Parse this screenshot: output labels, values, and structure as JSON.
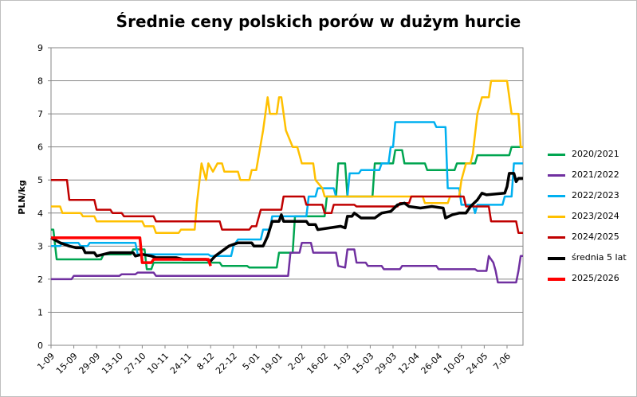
{
  "chart_data": {
    "type": "line",
    "title": "Średnie ceny polskich porów w dużym hurcie",
    "ylabel": "PLN/kg",
    "xlabel": "",
    "ylim": [
      0,
      9
    ],
    "yticks": [
      "0",
      "1",
      "2",
      "3",
      "4",
      "5",
      "6",
      "7",
      "8",
      "9"
    ],
    "grid": "horizontal",
    "legend_position": "right",
    "x_categories": [
      "1-09",
      "15-09",
      "29-09",
      "13-10",
      "27-10",
      "10-11",
      "24-11",
      "8-12",
      "22-12",
      "5-01",
      "19-01",
      "2-02",
      "16-02",
      "1-03",
      "15-03",
      "29-03",
      "12-04",
      "26-04",
      "10-05",
      "24-05",
      "7-06"
    ],
    "series": [
      {
        "name": "2020/2021",
        "color": "#00a550",
        "points": [
          [
            0,
            3.5
          ],
          [
            0.1,
            3.5
          ],
          [
            0.25,
            2.6
          ],
          [
            2.2,
            2.6
          ],
          [
            2.3,
            2.75
          ],
          [
            3.5,
            2.75
          ],
          [
            3.6,
            2.9
          ],
          [
            4.1,
            2.9
          ],
          [
            4.2,
            2.3
          ],
          [
            4.4,
            2.3
          ],
          [
            4.5,
            2.5
          ],
          [
            7.4,
            2.5
          ],
          [
            7.5,
            2.4
          ],
          [
            8.6,
            2.4
          ],
          [
            8.7,
            2.35
          ],
          [
            9.9,
            2.35
          ],
          [
            10.0,
            2.8
          ],
          [
            10.6,
            2.8
          ],
          [
            10.7,
            3.9
          ],
          [
            12.0,
            3.9
          ],
          [
            12.1,
            4.5
          ],
          [
            12.5,
            4.5
          ],
          [
            12.6,
            5.5
          ],
          [
            12.9,
            5.5
          ],
          [
            13.0,
            4.5
          ],
          [
            14.1,
            4.5
          ],
          [
            14.2,
            5.5
          ],
          [
            15.0,
            5.5
          ],
          [
            15.1,
            5.9
          ],
          [
            15.4,
            5.9
          ],
          [
            15.5,
            5.5
          ],
          [
            16.4,
            5.5
          ],
          [
            16.5,
            5.3
          ],
          [
            17.7,
            5.3
          ],
          [
            17.8,
            5.5
          ],
          [
            18.6,
            5.5
          ],
          [
            18.7,
            5.75
          ],
          [
            20.1,
            5.75
          ],
          [
            20.2,
            6.0
          ],
          [
            20.7,
            6.0
          ]
        ]
      },
      {
        "name": "2021/2022",
        "color": "#7030a0",
        "points": [
          [
            0,
            2.0
          ],
          [
            0.9,
            2.0
          ],
          [
            1.0,
            2.1
          ],
          [
            3.0,
            2.1
          ],
          [
            3.1,
            2.15
          ],
          [
            3.7,
            2.15
          ],
          [
            3.8,
            2.2
          ],
          [
            4.5,
            2.2
          ],
          [
            4.6,
            2.1
          ],
          [
            10.4,
            2.1
          ],
          [
            10.5,
            2.8
          ],
          [
            10.9,
            2.8
          ],
          [
            11.0,
            3.1
          ],
          [
            11.4,
            3.1
          ],
          [
            11.5,
            2.8
          ],
          [
            12.5,
            2.8
          ],
          [
            12.6,
            2.4
          ],
          [
            12.9,
            2.35
          ],
          [
            13.0,
            2.9
          ],
          [
            13.3,
            2.9
          ],
          [
            13.4,
            2.5
          ],
          [
            13.8,
            2.5
          ],
          [
            13.9,
            2.4
          ],
          [
            14.5,
            2.4
          ],
          [
            14.6,
            2.3
          ],
          [
            15.3,
            2.3
          ],
          [
            15.4,
            2.4
          ],
          [
            16.9,
            2.4
          ],
          [
            17.0,
            2.3
          ],
          [
            18.6,
            2.3
          ],
          [
            18.7,
            2.25
          ],
          [
            19.1,
            2.25
          ],
          [
            19.2,
            2.7
          ],
          [
            19.4,
            2.5
          ],
          [
            19.5,
            2.25
          ],
          [
            19.6,
            1.9
          ],
          [
            20.4,
            1.9
          ],
          [
            20.5,
            2.25
          ],
          [
            20.6,
            2.7
          ],
          [
            20.7,
            2.7
          ]
        ]
      },
      {
        "name": "2022/2023",
        "color": "#00b0f0",
        "points": [
          [
            0,
            3.0
          ],
          [
            0.4,
            3.0
          ],
          [
            0.5,
            3.1
          ],
          [
            1.2,
            3.1
          ],
          [
            1.3,
            3.0
          ],
          [
            1.6,
            3.0
          ],
          [
            1.7,
            3.1
          ],
          [
            3.7,
            3.1
          ],
          [
            3.8,
            2.75
          ],
          [
            6.9,
            2.75
          ],
          [
            7.0,
            2.7
          ],
          [
            7.9,
            2.7
          ],
          [
            8.0,
            3.0
          ],
          [
            8.2,
            3.2
          ],
          [
            9.2,
            3.2
          ],
          [
            9.3,
            3.5
          ],
          [
            9.6,
            3.5
          ],
          [
            9.7,
            3.9
          ],
          [
            11.2,
            3.9
          ],
          [
            11.3,
            4.5
          ],
          [
            11.6,
            4.5
          ],
          [
            11.7,
            4.75
          ],
          [
            12.4,
            4.75
          ],
          [
            12.5,
            4.5
          ],
          [
            13.0,
            4.5
          ],
          [
            13.1,
            5.2
          ],
          [
            13.5,
            5.2
          ],
          [
            13.6,
            5.3
          ],
          [
            14.4,
            5.3
          ],
          [
            14.5,
            5.5
          ],
          [
            14.8,
            5.5
          ],
          [
            14.9,
            6.0
          ],
          [
            15.0,
            6.0
          ],
          [
            15.1,
            6.75
          ],
          [
            16.8,
            6.75
          ],
          [
            16.9,
            6.6
          ],
          [
            17.3,
            6.6
          ],
          [
            17.4,
            4.75
          ],
          [
            17.9,
            4.75
          ],
          [
            18.0,
            4.25
          ],
          [
            18.5,
            4.25
          ],
          [
            18.6,
            4.0
          ],
          [
            18.7,
            4.25
          ],
          [
            19.8,
            4.25
          ],
          [
            19.9,
            4.5
          ],
          [
            20.2,
            4.5
          ],
          [
            20.3,
            5.5
          ],
          [
            20.7,
            5.5
          ]
        ]
      },
      {
        "name": "2023/2024",
        "color": "#ffc000",
        "points": [
          [
            0,
            4.2
          ],
          [
            0.4,
            4.2
          ],
          [
            0.5,
            4.0
          ],
          [
            1.3,
            4.0
          ],
          [
            1.4,
            3.9
          ],
          [
            1.9,
            3.9
          ],
          [
            2.0,
            3.75
          ],
          [
            4.0,
            3.75
          ],
          [
            4.1,
            3.6
          ],
          [
            4.5,
            3.6
          ],
          [
            4.6,
            3.4
          ],
          [
            5.6,
            3.4
          ],
          [
            5.7,
            3.5
          ],
          [
            6.3,
            3.5
          ],
          [
            6.4,
            4.3
          ],
          [
            6.6,
            5.5
          ],
          [
            6.8,
            5.0
          ],
          [
            6.9,
            5.5
          ],
          [
            7.1,
            5.25
          ],
          [
            7.3,
            5.5
          ],
          [
            7.5,
            5.5
          ],
          [
            7.6,
            5.25
          ],
          [
            8.2,
            5.25
          ],
          [
            8.3,
            5.0
          ],
          [
            8.7,
            5.0
          ],
          [
            8.8,
            5.3
          ],
          [
            9.0,
            5.3
          ],
          [
            9.3,
            6.5
          ],
          [
            9.5,
            7.5
          ],
          [
            9.6,
            7.0
          ],
          [
            9.9,
            7.0
          ],
          [
            10.0,
            7.5
          ],
          [
            10.1,
            7.5
          ],
          [
            10.3,
            6.5
          ],
          [
            10.6,
            6.0
          ],
          [
            10.8,
            6.0
          ],
          [
            11.0,
            5.5
          ],
          [
            11.5,
            5.5
          ],
          [
            11.6,
            5.0
          ],
          [
            11.9,
            4.75
          ],
          [
            12.0,
            4.5
          ],
          [
            16.3,
            4.5
          ],
          [
            16.4,
            4.3
          ],
          [
            17.4,
            4.3
          ],
          [
            17.5,
            4.5
          ],
          [
            17.9,
            4.5
          ],
          [
            18.0,
            5.0
          ],
          [
            18.2,
            5.5
          ],
          [
            18.4,
            5.5
          ],
          [
            18.5,
            5.8
          ],
          [
            18.7,
            7.0
          ],
          [
            18.9,
            7.5
          ],
          [
            19.2,
            7.5
          ],
          [
            19.3,
            8.0
          ],
          [
            20.0,
            8.0
          ],
          [
            20.2,
            7.0
          ],
          [
            20.5,
            7.0
          ],
          [
            20.6,
            6.0
          ],
          [
            20.7,
            6.0
          ]
        ]
      },
      {
        "name": "2024/2025",
        "color": "#c00000",
        "points": [
          [
            0,
            5.0
          ],
          [
            0.7,
            5.0
          ],
          [
            0.8,
            4.4
          ],
          [
            1.9,
            4.4
          ],
          [
            2.0,
            4.1
          ],
          [
            2.6,
            4.1
          ],
          [
            2.7,
            4.0
          ],
          [
            3.1,
            4.0
          ],
          [
            3.2,
            3.9
          ],
          [
            4.5,
            3.9
          ],
          [
            4.6,
            3.75
          ],
          [
            7.4,
            3.75
          ],
          [
            7.5,
            3.5
          ],
          [
            8.7,
            3.5
          ],
          [
            8.8,
            3.6
          ],
          [
            9.0,
            3.6
          ],
          [
            9.2,
            4.1
          ],
          [
            10.1,
            4.1
          ],
          [
            10.2,
            4.5
          ],
          [
            11.1,
            4.5
          ],
          [
            11.2,
            4.25
          ],
          [
            11.9,
            4.25
          ],
          [
            12.0,
            4.0
          ],
          [
            12.3,
            4.0
          ],
          [
            12.4,
            4.25
          ],
          [
            13.3,
            4.25
          ],
          [
            13.4,
            4.2
          ],
          [
            15.2,
            4.2
          ],
          [
            15.3,
            4.3
          ],
          [
            15.7,
            4.3
          ],
          [
            15.8,
            4.5
          ],
          [
            18.1,
            4.5
          ],
          [
            18.2,
            4.2
          ],
          [
            19.2,
            4.2
          ],
          [
            19.3,
            3.75
          ],
          [
            20.4,
            3.75
          ],
          [
            20.5,
            3.4
          ],
          [
            20.7,
            3.4
          ]
        ]
      },
      {
        "name": "średnia 5 lat",
        "color": "#000000",
        "bold": true,
        "points": [
          [
            0,
            3.25
          ],
          [
            0.4,
            3.1
          ],
          [
            0.8,
            3.0
          ],
          [
            1.1,
            2.95
          ],
          [
            1.4,
            2.95
          ],
          [
            1.5,
            2.8
          ],
          [
            1.9,
            2.8
          ],
          [
            2.0,
            2.7
          ],
          [
            2.3,
            2.75
          ],
          [
            2.6,
            2.8
          ],
          [
            3.6,
            2.8
          ],
          [
            3.7,
            2.7
          ],
          [
            4.0,
            2.75
          ],
          [
            4.4,
            2.7
          ],
          [
            4.6,
            2.65
          ],
          [
            5.5,
            2.65
          ],
          [
            5.8,
            2.6
          ],
          [
            6.8,
            2.6
          ],
          [
            7.0,
            2.55
          ],
          [
            7.2,
            2.7
          ],
          [
            7.5,
            2.85
          ],
          [
            7.8,
            3.0
          ],
          [
            8.2,
            3.1
          ],
          [
            8.8,
            3.1
          ],
          [
            8.9,
            3.0
          ],
          [
            9.3,
            3.0
          ],
          [
            9.5,
            3.3
          ],
          [
            9.7,
            3.75
          ],
          [
            10.0,
            3.75
          ],
          [
            10.1,
            3.95
          ],
          [
            10.2,
            3.75
          ],
          [
            11.2,
            3.75
          ],
          [
            11.3,
            3.65
          ],
          [
            11.6,
            3.65
          ],
          [
            11.7,
            3.5
          ],
          [
            12.2,
            3.55
          ],
          [
            12.7,
            3.6
          ],
          [
            12.9,
            3.55
          ],
          [
            13.0,
            3.9
          ],
          [
            13.2,
            3.9
          ],
          [
            13.3,
            4.0
          ],
          [
            13.6,
            3.85
          ],
          [
            14.2,
            3.85
          ],
          [
            14.5,
            4.0
          ],
          [
            14.9,
            4.05
          ],
          [
            15.2,
            4.25
          ],
          [
            15.5,
            4.3
          ],
          [
            15.7,
            4.2
          ],
          [
            16.2,
            4.15
          ],
          [
            16.7,
            4.2
          ],
          [
            17.2,
            4.15
          ],
          [
            17.3,
            3.85
          ],
          [
            17.6,
            3.95
          ],
          [
            17.9,
            4.0
          ],
          [
            18.2,
            4.0
          ],
          [
            18.4,
            4.2
          ],
          [
            18.7,
            4.4
          ],
          [
            18.9,
            4.6
          ],
          [
            19.1,
            4.55
          ],
          [
            19.9,
            4.6
          ],
          [
            20.0,
            4.8
          ],
          [
            20.1,
            5.2
          ],
          [
            20.3,
            5.2
          ],
          [
            20.4,
            4.95
          ],
          [
            20.5,
            5.05
          ],
          [
            20.7,
            5.05
          ]
        ]
      },
      {
        "name": "2025/2026",
        "color": "#ff0000",
        "bold": true,
        "points": [
          [
            0,
            3.25
          ],
          [
            3.9,
            3.25
          ],
          [
            4.0,
            2.5
          ],
          [
            4.4,
            2.5
          ],
          [
            4.5,
            2.6
          ],
          [
            6.9,
            2.6
          ],
          [
            7.0,
            2.4
          ]
        ]
      }
    ]
  }
}
